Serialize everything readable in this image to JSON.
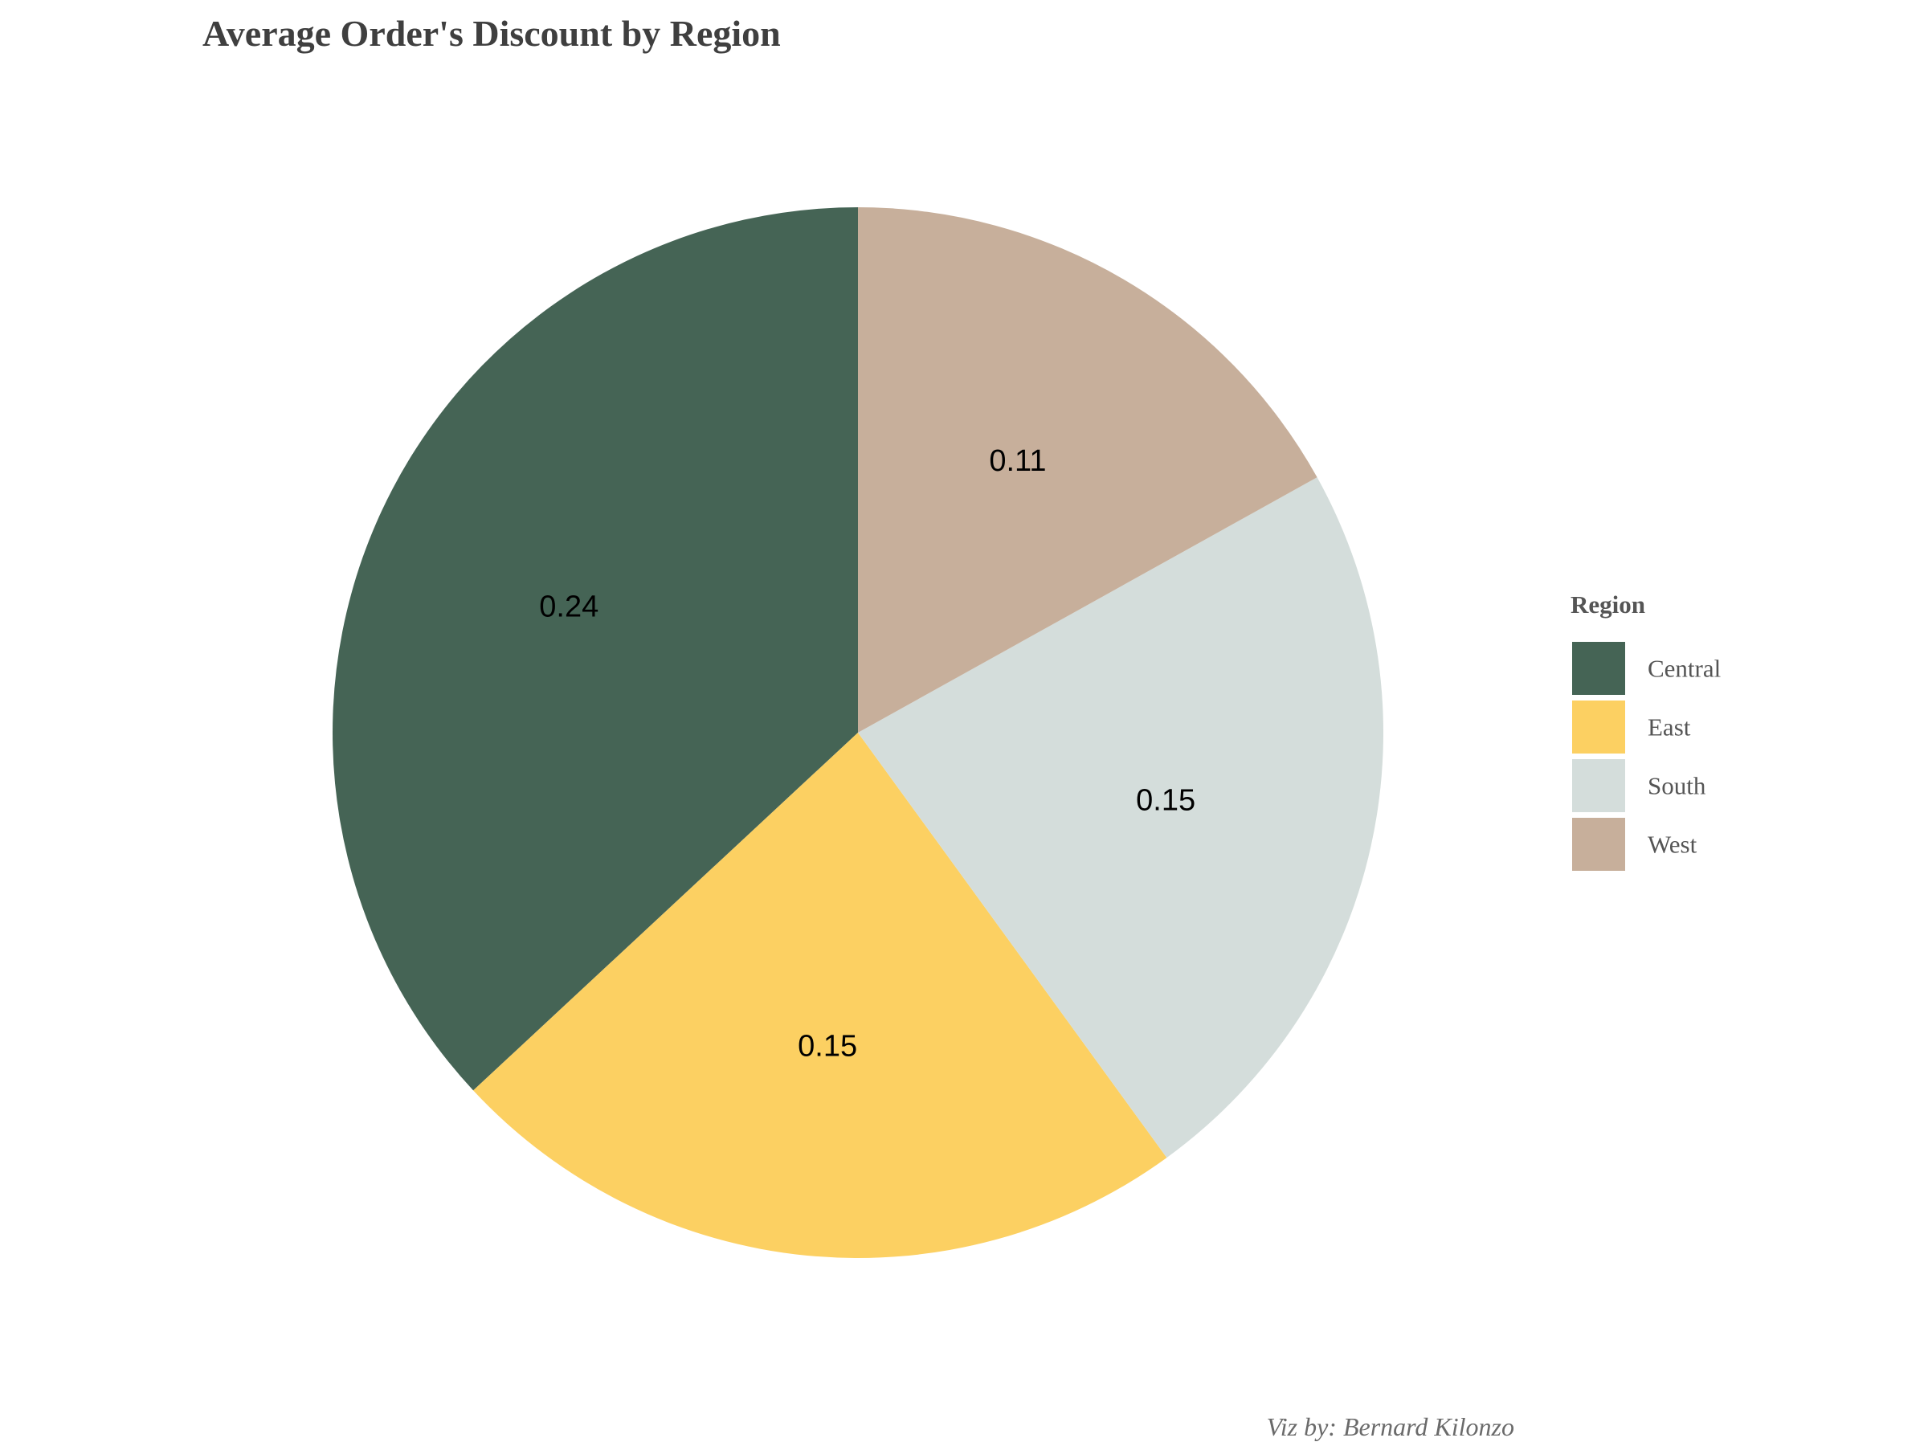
{
  "chart_data": {
    "type": "pie",
    "title": "Average Order's Discount by Region",
    "caption": "Viz by: Bernard Kilonzo",
    "legend": {
      "title": "Region",
      "position": "right"
    },
    "categories": [
      "Central",
      "East",
      "South",
      "West"
    ],
    "values": [
      0.24,
      0.15,
      0.15,
      0.11
    ],
    "value_labels": [
      "0.24",
      "0.15",
      "0.15",
      "0.11"
    ],
    "colors": [
      "#456455",
      "#FCD062",
      "#D4DDDB",
      "#C7AF9B"
    ],
    "start_angle_deg": 0,
    "direction": "counterclockwise"
  }
}
